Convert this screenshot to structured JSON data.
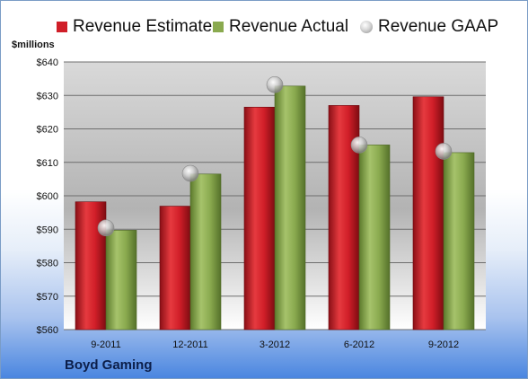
{
  "chart_data": {
    "type": "bar",
    "ylabel": "$millions",
    "ylim": [
      560,
      640
    ],
    "ytick_step": 10,
    "y_ticks": [
      "$560",
      "$570",
      "$580",
      "$590",
      "$600",
      "$610",
      "$620",
      "$630",
      "$640"
    ],
    "categories": [
      "9-2011",
      "12-2011",
      "3-2012",
      "6-2012",
      "9-2012"
    ],
    "series": [
      {
        "name": "Revenue Estimate",
        "kind": "bar",
        "color": "#d01e28",
        "values": [
          598.2,
          596.9,
          626.5,
          627.0,
          629.6
        ]
      },
      {
        "name": "Revenue Actual",
        "kind": "bar",
        "color": "#8aaa4f",
        "values": [
          589.7,
          606.5,
          632.8,
          615.2,
          612.9
        ]
      },
      {
        "name": "Revenue GAAP",
        "kind": "marker",
        "color": "#bdbdbd",
        "values": [
          590.4,
          606.7,
          633.2,
          615.2,
          613.3
        ]
      }
    ],
    "grid": true,
    "legend_position": "top",
    "annotation": "Boyd Gaming"
  }
}
